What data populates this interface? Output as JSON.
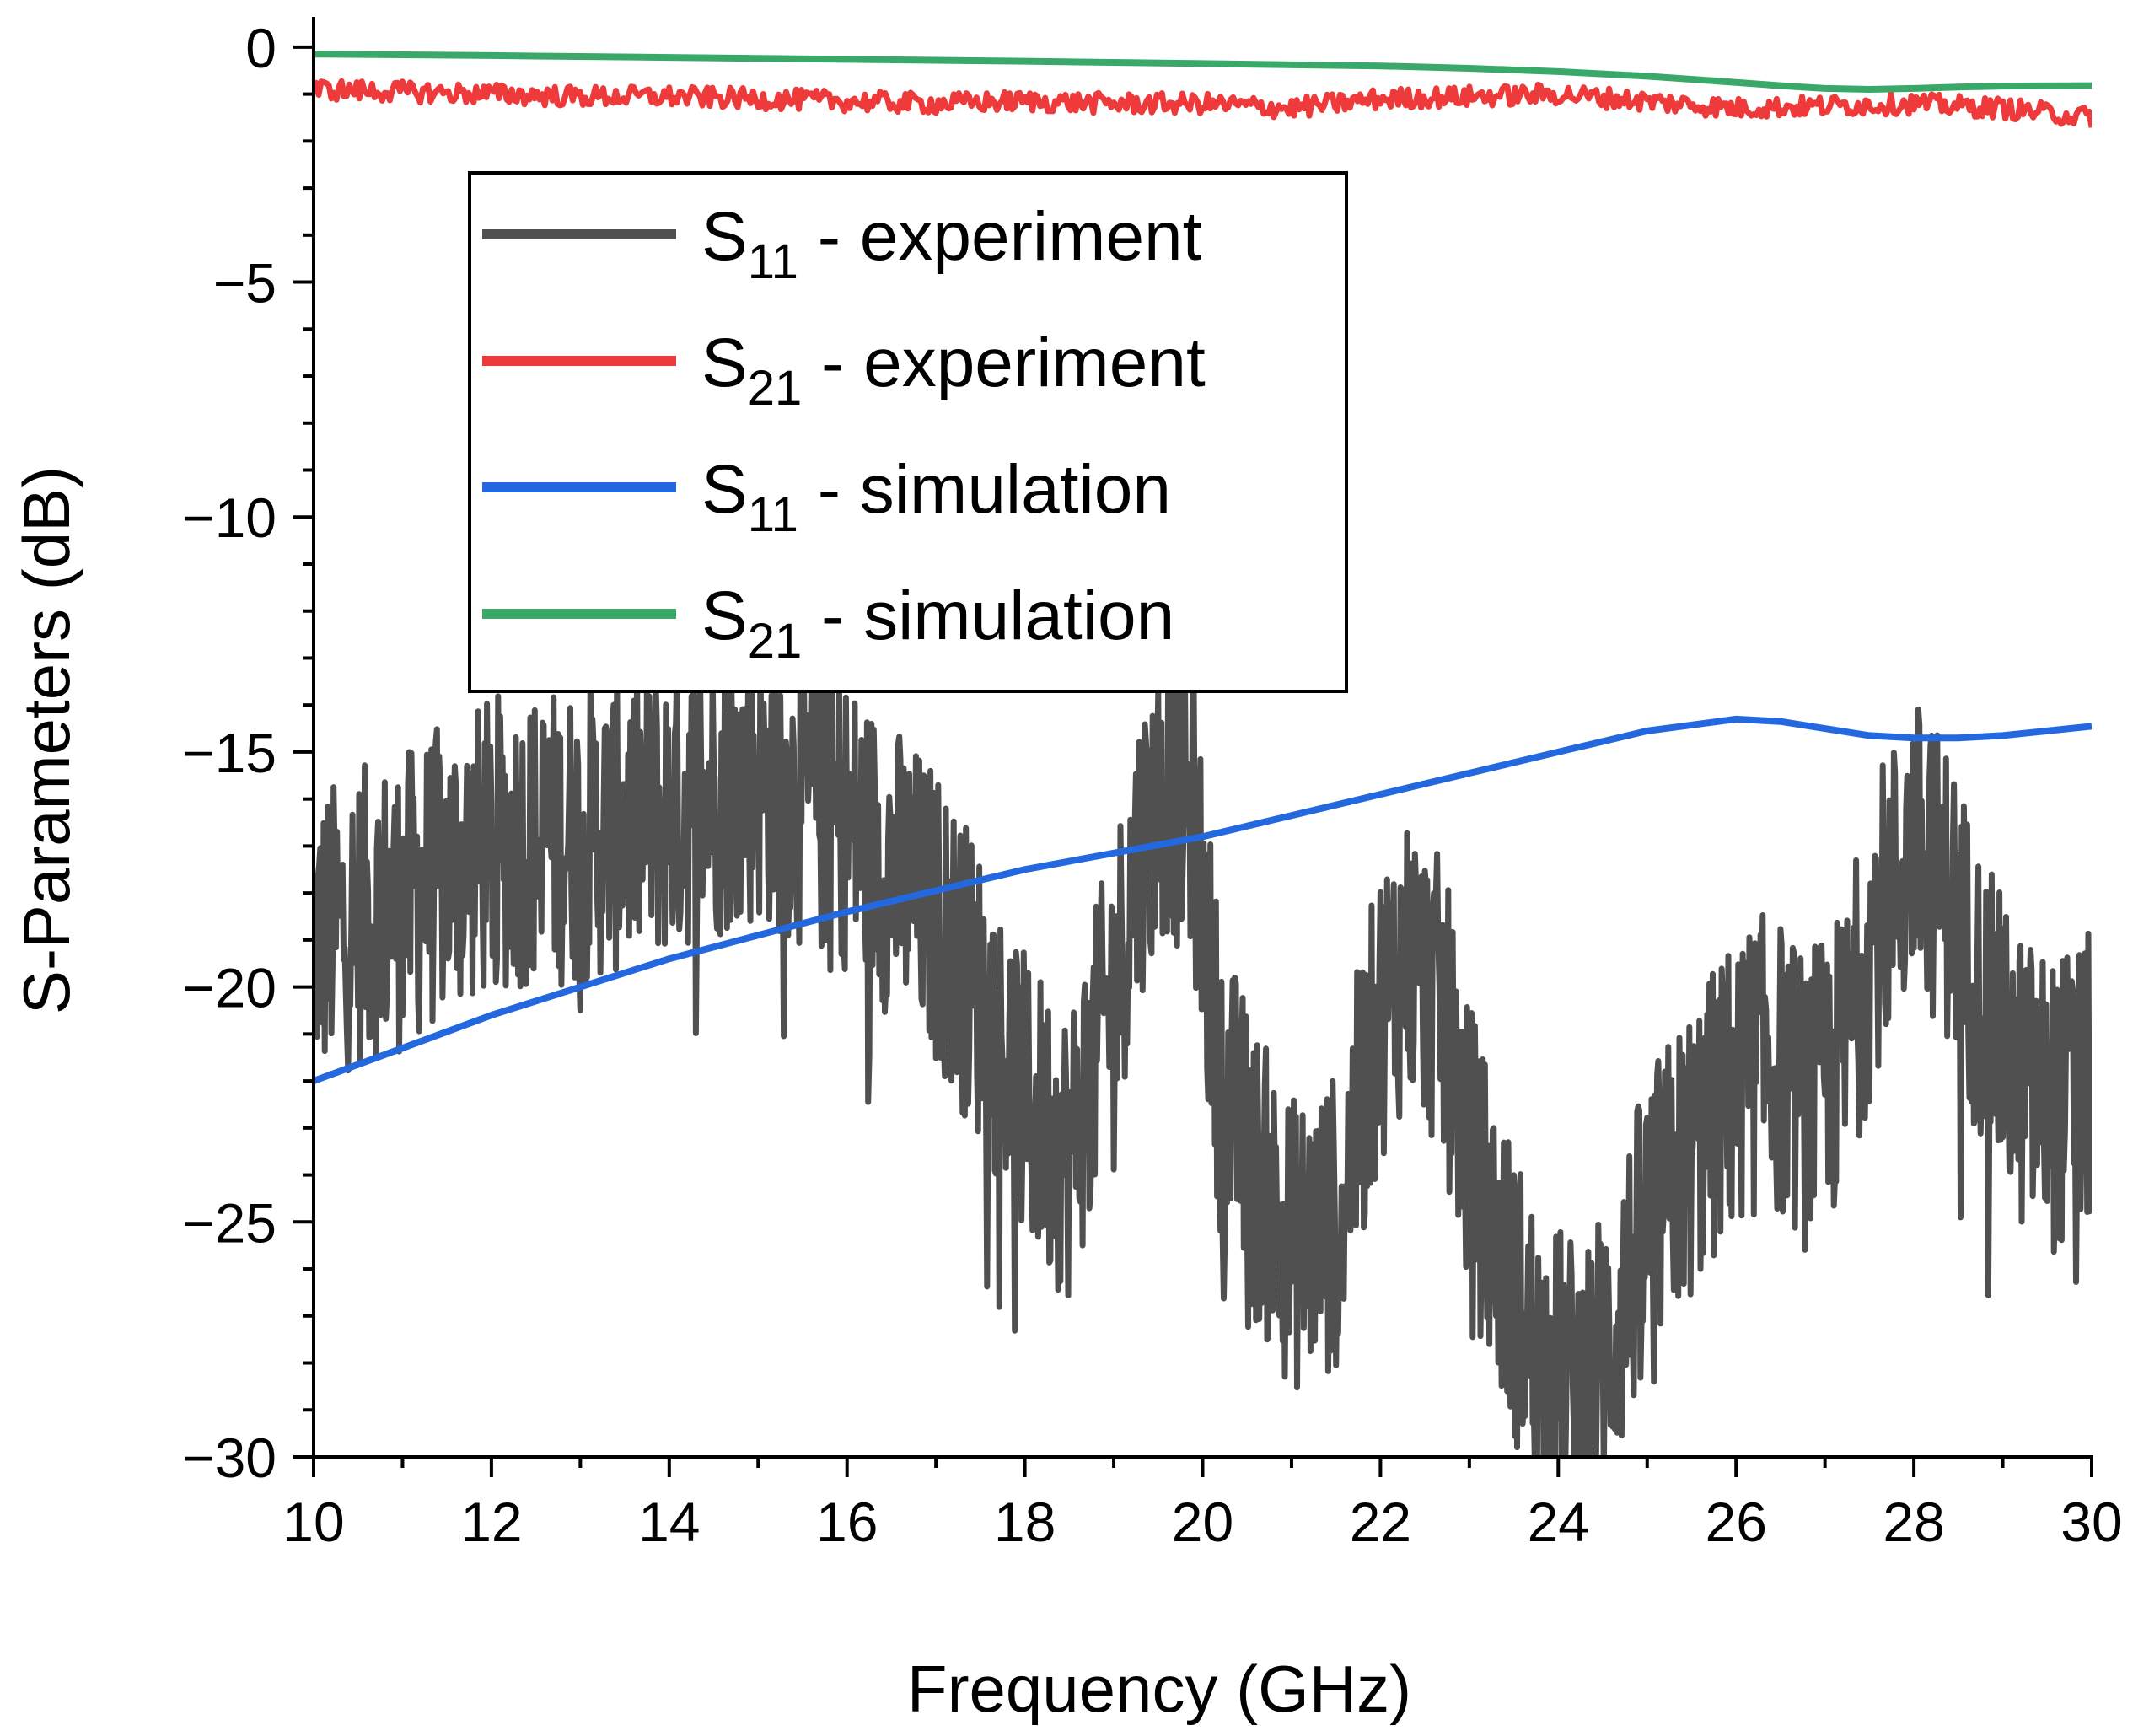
{
  "chart_data": {
    "type": "line",
    "xlabel": "Frequency (GHz)",
    "ylabel": "S-Parameters (dB)",
    "xlim": [
      10,
      30
    ],
    "ylim": [
      -30,
      0.5
    ],
    "x_ticks": [
      "10",
      "12",
      "14",
      "16",
      "18",
      "20",
      "22",
      "24",
      "26",
      "28",
      "30"
    ],
    "y_ticks": [
      "0",
      "−5",
      "−10",
      "−15",
      "−20",
      "−25",
      "−30"
    ],
    "grid": false,
    "legend_position": "upper-left",
    "series": [
      {
        "name_main": "S",
        "name_sub": "11",
        "name_rest": " - experiment",
        "color": "#505050",
        "noisy": true,
        "x": [
          10,
          10.5,
          11,
          11.5,
          12,
          12.5,
          13,
          13.5,
          14,
          14.5,
          15,
          15.5,
          16,
          16.5,
          17,
          17.3,
          17.6,
          18,
          18.5,
          19,
          19.3,
          19.6,
          19.9,
          20.2,
          20.6,
          21,
          21.5,
          22,
          22.3,
          22.7,
          23,
          23.4,
          23.8,
          24.2,
          24.6,
          25,
          25.5,
          26,
          26.4,
          26.8,
          27.2,
          27.6,
          28,
          28.4,
          28.8,
          29.2,
          29.6,
          30
        ],
        "y": [
          -19,
          -18.5,
          -18.2,
          -17.5,
          -17,
          -16.8,
          -16.8,
          -16.5,
          -16.2,
          -15.8,
          -15.5,
          -16,
          -16.5,
          -17.5,
          -18.5,
          -19.5,
          -20.5,
          -22.5,
          -23.5,
          -20,
          -17,
          -15.7,
          -16.5,
          -22,
          -24,
          -25.5,
          -25,
          -20.5,
          -19.3,
          -20.5,
          -23.5,
          -26,
          -28,
          -28.5,
          -27.5,
          -25,
          -23.5,
          -22,
          -21.5,
          -22.5,
          -21.5,
          -18.5,
          -17,
          -18,
          -20.5,
          -22,
          -22.5,
          -22
        ]
      },
      {
        "name_main": "S",
        "name_sub": "21",
        "name_rest": " - experiment",
        "color": "#ee3a3a",
        "noisy": true,
        "x": [
          10,
          11,
          12,
          13,
          14,
          15,
          16,
          17,
          18,
          19,
          20,
          21,
          22,
          23,
          24,
          25,
          26,
          27,
          28,
          29,
          30
        ],
        "y": [
          -0.9,
          -0.95,
          -1.0,
          -1.05,
          -1.05,
          -1.1,
          -1.15,
          -1.2,
          -1.15,
          -1.2,
          -1.2,
          -1.3,
          -1.1,
          -1.05,
          -1.0,
          -1.15,
          -1.3,
          -1.25,
          -1.2,
          -1.3,
          -1.5
        ]
      },
      {
        "name_main": "S",
        "name_sub": "11",
        "name_rest": " - simulation",
        "color": "#2468e0",
        "noisy": false,
        "x": [
          10,
          12,
          14,
          16,
          18,
          20,
          22,
          24,
          25,
          26,
          26.5,
          27,
          27.5,
          28,
          28.5,
          29,
          29.5,
          30
        ],
        "y": [
          -22,
          -20.6,
          -19.4,
          -18.4,
          -17.5,
          -16.8,
          -15.9,
          -15.0,
          -14.55,
          -14.3,
          -14.35,
          -14.5,
          -14.65,
          -14.7,
          -14.7,
          -14.65,
          -14.55,
          -14.45
        ]
      },
      {
        "name_main": "S",
        "name_sub": "21",
        "name_rest": " - simulation",
        "color": "#3aa868",
        "noisy": false,
        "x": [
          10,
          12,
          14,
          16,
          18,
          20,
          22,
          23,
          24,
          25,
          26,
          26.5,
          27,
          27.5,
          28,
          28.5,
          29,
          30
        ],
        "y": [
          -0.15,
          -0.18,
          -0.22,
          -0.26,
          -0.3,
          -0.35,
          -0.4,
          -0.45,
          -0.52,
          -0.62,
          -0.75,
          -0.82,
          -0.88,
          -0.9,
          -0.88,
          -0.85,
          -0.83,
          -0.82
        ]
      }
    ]
  }
}
